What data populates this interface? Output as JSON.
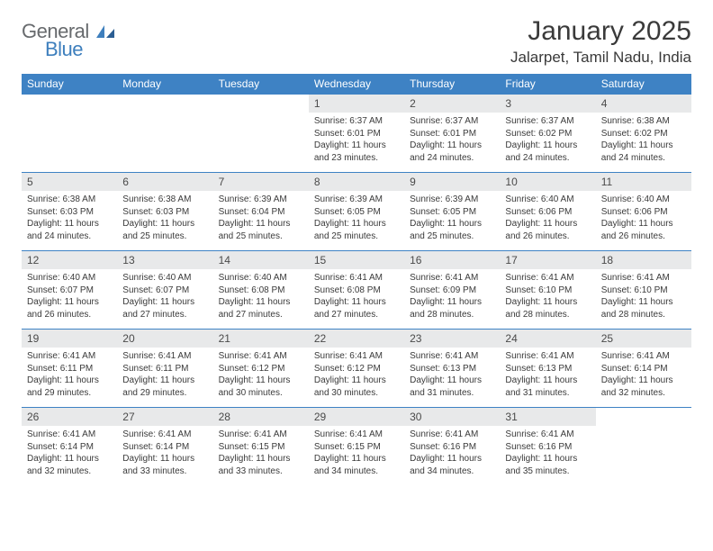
{
  "brand": {
    "part1": "General",
    "part2": "Blue"
  },
  "title": "January 2025",
  "location": "Jalarpet, Tamil Nadu, India",
  "colors": {
    "header_bg": "#3e82c4",
    "header_text": "#ffffff",
    "daynum_bg": "#e8e9ea",
    "border": "#3e82c4",
    "text": "#3a3a3a",
    "logo_gray": "#676a6d",
    "logo_blue": "#3e7fbd",
    "page_bg": "#ffffff"
  },
  "typography": {
    "title_fontsize": 30,
    "location_fontsize": 17,
    "weekday_fontsize": 12,
    "daynum_fontsize": 12,
    "body_fontsize": 10
  },
  "weekdays": [
    "Sunday",
    "Monday",
    "Tuesday",
    "Wednesday",
    "Thursday",
    "Friday",
    "Saturday"
  ],
  "weeks": [
    [
      {
        "day": "",
        "sunrise": "",
        "sunset": "",
        "daylight": ""
      },
      {
        "day": "",
        "sunrise": "",
        "sunset": "",
        "daylight": ""
      },
      {
        "day": "",
        "sunrise": "",
        "sunset": "",
        "daylight": ""
      },
      {
        "day": "1",
        "sunrise": "Sunrise: 6:37 AM",
        "sunset": "Sunset: 6:01 PM",
        "daylight": "Daylight: 11 hours and 23 minutes."
      },
      {
        "day": "2",
        "sunrise": "Sunrise: 6:37 AM",
        "sunset": "Sunset: 6:01 PM",
        "daylight": "Daylight: 11 hours and 24 minutes."
      },
      {
        "day": "3",
        "sunrise": "Sunrise: 6:37 AM",
        "sunset": "Sunset: 6:02 PM",
        "daylight": "Daylight: 11 hours and 24 minutes."
      },
      {
        "day": "4",
        "sunrise": "Sunrise: 6:38 AM",
        "sunset": "Sunset: 6:02 PM",
        "daylight": "Daylight: 11 hours and 24 minutes."
      }
    ],
    [
      {
        "day": "5",
        "sunrise": "Sunrise: 6:38 AM",
        "sunset": "Sunset: 6:03 PM",
        "daylight": "Daylight: 11 hours and 24 minutes."
      },
      {
        "day": "6",
        "sunrise": "Sunrise: 6:38 AM",
        "sunset": "Sunset: 6:03 PM",
        "daylight": "Daylight: 11 hours and 25 minutes."
      },
      {
        "day": "7",
        "sunrise": "Sunrise: 6:39 AM",
        "sunset": "Sunset: 6:04 PM",
        "daylight": "Daylight: 11 hours and 25 minutes."
      },
      {
        "day": "8",
        "sunrise": "Sunrise: 6:39 AM",
        "sunset": "Sunset: 6:05 PM",
        "daylight": "Daylight: 11 hours and 25 minutes."
      },
      {
        "day": "9",
        "sunrise": "Sunrise: 6:39 AM",
        "sunset": "Sunset: 6:05 PM",
        "daylight": "Daylight: 11 hours and 25 minutes."
      },
      {
        "day": "10",
        "sunrise": "Sunrise: 6:40 AM",
        "sunset": "Sunset: 6:06 PM",
        "daylight": "Daylight: 11 hours and 26 minutes."
      },
      {
        "day": "11",
        "sunrise": "Sunrise: 6:40 AM",
        "sunset": "Sunset: 6:06 PM",
        "daylight": "Daylight: 11 hours and 26 minutes."
      }
    ],
    [
      {
        "day": "12",
        "sunrise": "Sunrise: 6:40 AM",
        "sunset": "Sunset: 6:07 PM",
        "daylight": "Daylight: 11 hours and 26 minutes."
      },
      {
        "day": "13",
        "sunrise": "Sunrise: 6:40 AM",
        "sunset": "Sunset: 6:07 PM",
        "daylight": "Daylight: 11 hours and 27 minutes."
      },
      {
        "day": "14",
        "sunrise": "Sunrise: 6:40 AM",
        "sunset": "Sunset: 6:08 PM",
        "daylight": "Daylight: 11 hours and 27 minutes."
      },
      {
        "day": "15",
        "sunrise": "Sunrise: 6:41 AM",
        "sunset": "Sunset: 6:08 PM",
        "daylight": "Daylight: 11 hours and 27 minutes."
      },
      {
        "day": "16",
        "sunrise": "Sunrise: 6:41 AM",
        "sunset": "Sunset: 6:09 PM",
        "daylight": "Daylight: 11 hours and 28 minutes."
      },
      {
        "day": "17",
        "sunrise": "Sunrise: 6:41 AM",
        "sunset": "Sunset: 6:10 PM",
        "daylight": "Daylight: 11 hours and 28 minutes."
      },
      {
        "day": "18",
        "sunrise": "Sunrise: 6:41 AM",
        "sunset": "Sunset: 6:10 PM",
        "daylight": "Daylight: 11 hours and 28 minutes."
      }
    ],
    [
      {
        "day": "19",
        "sunrise": "Sunrise: 6:41 AM",
        "sunset": "Sunset: 6:11 PM",
        "daylight": "Daylight: 11 hours and 29 minutes."
      },
      {
        "day": "20",
        "sunrise": "Sunrise: 6:41 AM",
        "sunset": "Sunset: 6:11 PM",
        "daylight": "Daylight: 11 hours and 29 minutes."
      },
      {
        "day": "21",
        "sunrise": "Sunrise: 6:41 AM",
        "sunset": "Sunset: 6:12 PM",
        "daylight": "Daylight: 11 hours and 30 minutes."
      },
      {
        "day": "22",
        "sunrise": "Sunrise: 6:41 AM",
        "sunset": "Sunset: 6:12 PM",
        "daylight": "Daylight: 11 hours and 30 minutes."
      },
      {
        "day": "23",
        "sunrise": "Sunrise: 6:41 AM",
        "sunset": "Sunset: 6:13 PM",
        "daylight": "Daylight: 11 hours and 31 minutes."
      },
      {
        "day": "24",
        "sunrise": "Sunrise: 6:41 AM",
        "sunset": "Sunset: 6:13 PM",
        "daylight": "Daylight: 11 hours and 31 minutes."
      },
      {
        "day": "25",
        "sunrise": "Sunrise: 6:41 AM",
        "sunset": "Sunset: 6:14 PM",
        "daylight": "Daylight: 11 hours and 32 minutes."
      }
    ],
    [
      {
        "day": "26",
        "sunrise": "Sunrise: 6:41 AM",
        "sunset": "Sunset: 6:14 PM",
        "daylight": "Daylight: 11 hours and 32 minutes."
      },
      {
        "day": "27",
        "sunrise": "Sunrise: 6:41 AM",
        "sunset": "Sunset: 6:14 PM",
        "daylight": "Daylight: 11 hours and 33 minutes."
      },
      {
        "day": "28",
        "sunrise": "Sunrise: 6:41 AM",
        "sunset": "Sunset: 6:15 PM",
        "daylight": "Daylight: 11 hours and 33 minutes."
      },
      {
        "day": "29",
        "sunrise": "Sunrise: 6:41 AM",
        "sunset": "Sunset: 6:15 PM",
        "daylight": "Daylight: 11 hours and 34 minutes."
      },
      {
        "day": "30",
        "sunrise": "Sunrise: 6:41 AM",
        "sunset": "Sunset: 6:16 PM",
        "daylight": "Daylight: 11 hours and 34 minutes."
      },
      {
        "day": "31",
        "sunrise": "Sunrise: 6:41 AM",
        "sunset": "Sunset: 6:16 PM",
        "daylight": "Daylight: 11 hours and 35 minutes."
      },
      {
        "day": "",
        "sunrise": "",
        "sunset": "",
        "daylight": ""
      }
    ]
  ]
}
